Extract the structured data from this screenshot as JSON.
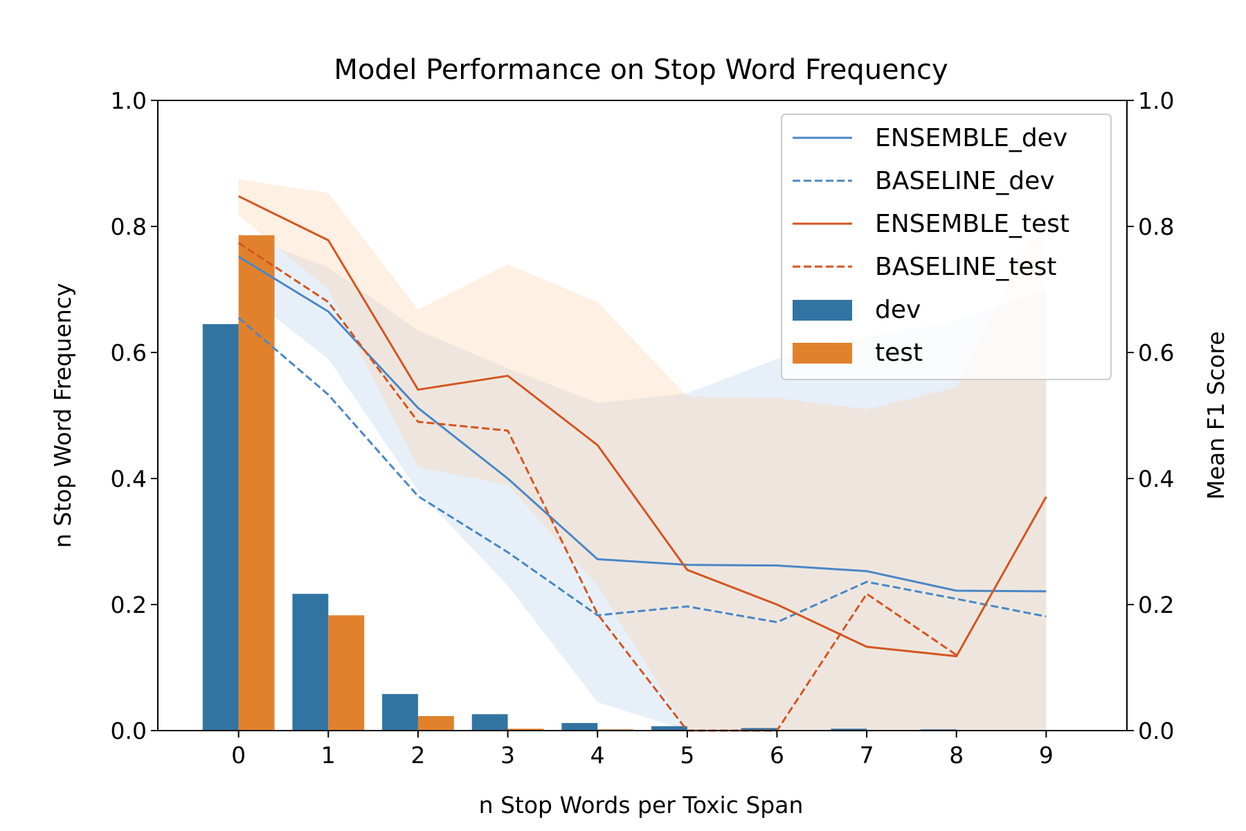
{
  "chart_data": {
    "type": "bar",
    "title": "Model Performance on Stop Word Frequency",
    "xlabel": "n Stop Words per Toxic Span",
    "ylabel_left": "n Stop Word Frequency",
    "ylabel_right": "Mean F1 Score",
    "categories": [
      "0",
      "1",
      "2",
      "3",
      "4",
      "5",
      "6",
      "7",
      "8",
      "9"
    ],
    "x": [
      0,
      1,
      2,
      3,
      4,
      5,
      6,
      7,
      8,
      9
    ],
    "xlim": [
      -0.9,
      9.9
    ],
    "ylim_left": [
      0,
      1.0
    ],
    "ylim_right": [
      0,
      1.0
    ],
    "yticks": [
      0.0,
      0.2,
      0.4,
      0.6,
      0.8,
      1.0
    ],
    "ytick_labels": [
      "0.0",
      "0.2",
      "0.4",
      "0.6",
      "0.8",
      "1.0"
    ],
    "grid": false,
    "legend_position": "top-right",
    "bar_series": [
      {
        "name": "dev",
        "color": "#3274a1",
        "values": [
          0.645,
          0.217,
          0.058,
          0.026,
          0.012,
          0.007,
          0.004,
          0.003,
          0.002,
          0.001
        ]
      },
      {
        "name": "test",
        "color": "#e1812c",
        "values": [
          0.786,
          0.183,
          0.023,
          0.003,
          0.002,
          0.0,
          0.0,
          0.0,
          0.0,
          0.0
        ]
      }
    ],
    "line_series": [
      {
        "name": "ENSEMBLE_dev",
        "color": "#4a87c6",
        "dash": "solid",
        "values": [
          0.752,
          0.665,
          0.512,
          0.4,
          0.272,
          0.263,
          0.262,
          0.253,
          0.222,
          0.221
        ]
      },
      {
        "name": "BASELINE_dev",
        "color": "#4a87c6",
        "dash": "dashed",
        "values": [
          0.655,
          0.533,
          0.372,
          0.283,
          0.183,
          0.197,
          0.172,
          0.236,
          0.209,
          0.181
        ]
      },
      {
        "name": "ENSEMBLE_test",
        "color": "#d45521",
        "dash": "solid",
        "values": [
          0.848,
          0.778,
          0.541,
          0.563,
          0.453,
          0.255,
          0.2,
          0.133,
          0.118,
          0.371
        ]
      },
      {
        "name": "BASELINE_test",
        "color": "#d45521",
        "dash": "dashed",
        "values": [
          0.774,
          0.68,
          0.49,
          0.476,
          0.185,
          0.0,
          0.0,
          0.217,
          0.12,
          null
        ]
      }
    ],
    "bands": [
      {
        "name": "dev_interval",
        "color": "#a9c8e8",
        "opacity": 0.28,
        "upper": [
          0.79,
          0.735,
          0.635,
          0.575,
          0.52,
          0.535,
          0.59,
          0.625,
          0.65,
          0.7
        ],
        "lower": [
          0.7,
          0.59,
          0.38,
          0.23,
          0.045,
          0.0,
          0.0,
          0.0,
          0.0,
          0.0
        ]
      },
      {
        "name": "test_interval",
        "color": "#fdd0a5",
        "opacity": 0.32,
        "upper": [
          0.875,
          0.853,
          0.668,
          0.74,
          0.68,
          0.53,
          0.528,
          0.51,
          0.545,
          0.832
        ],
        "lower": [
          0.818,
          0.7,
          0.418,
          0.39,
          0.23,
          0.0,
          0.0,
          0.0,
          0.0,
          0.0
        ]
      }
    ],
    "legend": [
      "ENSEMBLE_dev",
      "BASELINE_dev",
      "ENSEMBLE_test",
      "BASELINE_test",
      "dev",
      "test"
    ]
  }
}
